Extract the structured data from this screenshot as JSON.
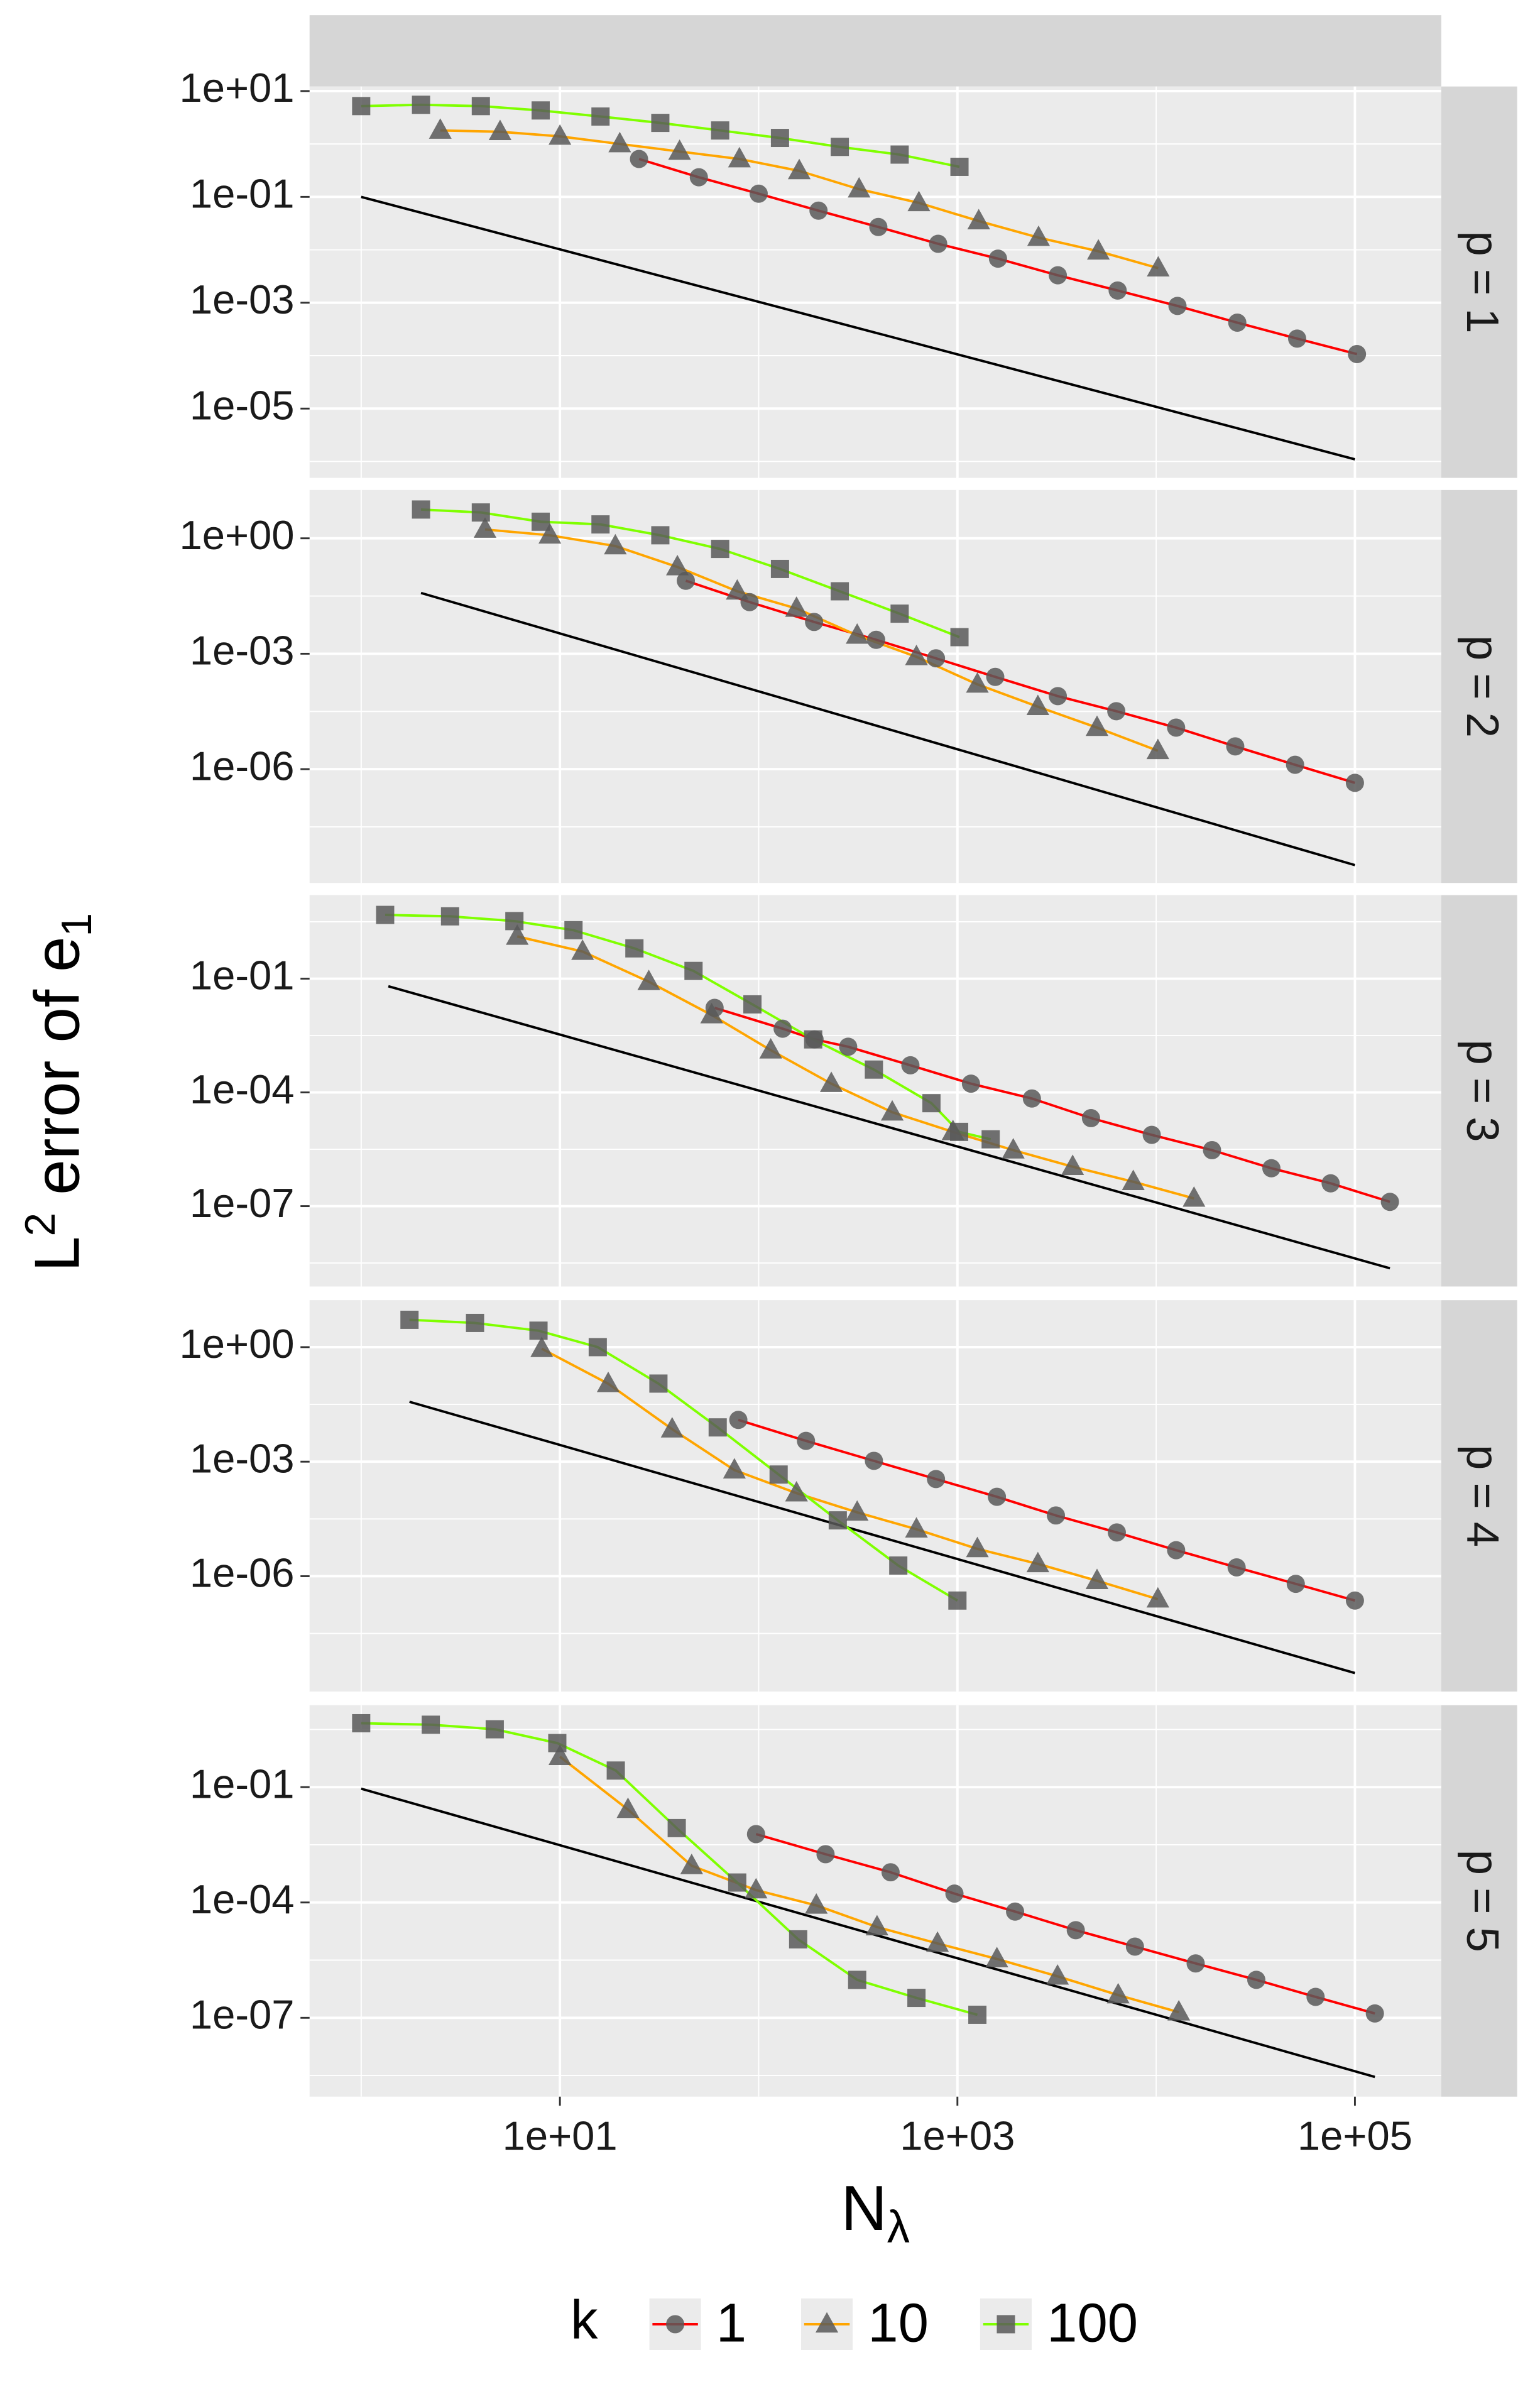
{
  "chart_data": {
    "type": "line",
    "x_label": [
      "N",
      "λ"
    ],
    "y_label": [
      "L",
      "2",
      " error of e",
      "1"
    ],
    "xscale": "log",
    "yscale": "log",
    "grid": true,
    "xlim": [
      0.55,
      272000
    ],
    "xticks": [
      {
        "value": 10,
        "label": "1e+01"
      },
      {
        "value": 1000,
        "label": "1e+03"
      },
      {
        "value": 100000,
        "label": "1e+05"
      }
    ],
    "legend_title": "k",
    "legend_position": "bottom",
    "marker_color": "#595959",
    "reference_color": "#000000",
    "series": [
      {
        "name": "1",
        "color": "#ff0000",
        "marker": "circle"
      },
      {
        "name": "10",
        "color": "#ffa500",
        "marker": "triangle"
      },
      {
        "name": "100",
        "color": "#7fff00",
        "marker": "square"
      }
    ],
    "panels": [
      {
        "label": "p = 1",
        "ylim": [
          4.9e-07,
          12.2
        ],
        "yticks": [
          {
            "value": 10,
            "label": "1e+01"
          },
          {
            "value": 0.1,
            "label": "1e-01"
          },
          {
            "value": 0.001,
            "label": "1e-03"
          },
          {
            "value": 1e-05,
            "label": "1e-05"
          }
        ],
        "data": [
          {
            "x": [
              25,
              50,
              100,
              200,
              400,
              800,
              1600,
              3200,
              6400,
              12800,
              25600,
              51200,
              102400
            ],
            "values": [
              0.52,
              0.235,
              0.115,
              0.055,
              0.027,
              0.013,
              0.0068,
              0.0033,
              0.0017,
              0.00087,
              0.00042,
              0.00021,
              0.000107
            ]
          },
          {
            "x": [
              2.5,
              5,
              10,
              20,
              40,
              80,
              160,
              320,
              640,
              1280,
              2560,
              5120,
              10240
            ],
            "values": [
              1.8,
              1.7,
              1.39,
              1.0,
              0.72,
              0.52,
              0.31,
              0.14,
              0.077,
              0.035,
              0.017,
              0.0094,
              0.0045
            ]
          },
          {
            "x": [
              1,
              2,
              4,
              8,
              16,
              32,
              64,
              128,
              256,
              512,
              1024
            ],
            "values": [
              5.2,
              5.5,
              5.2,
              4.3,
              3.3,
              2.5,
              1.8,
              1.3,
              0.88,
              0.63,
              0.37
            ]
          }
        ],
        "reference": {
          "x": [
            1,
            100000
          ],
          "values": [
            0.1,
            1.1e-06
          ]
        }
      },
      {
        "label": "p = 2",
        "ylim": [
          1.1e-09,
          18
        ],
        "yticks": [
          {
            "value": 1,
            "label": "1e+00"
          },
          {
            "value": 0.001,
            "label": "1e-03"
          },
          {
            "value": 1e-06,
            "label": "1e-06"
          }
        ],
        "data": [
          {
            "x": [
              43,
              90,
              190,
              390,
              780,
              1550,
              3200,
              6300,
              12600,
              25000,
              50000,
              100000
            ],
            "values": [
              0.079,
              0.022,
              0.0067,
              0.0023,
              0.00076,
              0.00025,
              7.9e-05,
              3.2e-05,
              1.2e-05,
              3.9e-06,
              1.3e-06,
              4.4e-07
            ]
          },
          {
            "x": [
              4.2,
              8.9,
              19,
              39,
              78,
              155,
              313,
              622,
              1260,
              2540,
              5040,
              10200
            ],
            "values": [
              1.7,
              1.2,
              0.63,
              0.18,
              0.042,
              0.015,
              0.003,
              0.00083,
              0.00016,
              4.2e-05,
              1.2e-05,
              3e-06
            ]
          },
          {
            "x": [
              2,
              4,
              8,
              16,
              32,
              64,
              128,
              256,
              512,
              1024
            ],
            "values": [
              5.6,
              4.7,
              2.7,
              2.3,
              1.2,
              0.53,
              0.16,
              0.042,
              0.011,
              0.0027
            ]
          }
        ],
        "reference": {
          "x": [
            2,
            100000
          ],
          "values": [
            0.038,
            3.2e-09
          ]
        }
      },
      {
        "label": "p = 3",
        "ylim": [
          7.6e-10,
          16
        ],
        "yticks": [
          {
            "value": 0.1,
            "label": "1e-01"
          },
          {
            "value": 0.0001,
            "label": "1e-04"
          },
          {
            "value": 1e-07,
            "label": "1e-07"
          }
        ],
        "data": [
          {
            "x": [
              60,
              132,
              191,
              282,
              580,
              1170,
              2370,
              4700,
              9500,
              19100,
              38000,
              75500,
              150000
            ],
            "values": [
              0.017,
              0.0048,
              0.0025,
              0.0016,
              0.00052,
              0.00017,
              6.9e-05,
              2.1e-05,
              7.6e-06,
              3e-06,
              1e-06,
              4e-07,
              1.3e-07
            ]
          },
          {
            "x": [
              6.1,
              13,
              28,
              58,
              115,
              232,
              470,
              950,
              1910,
              3800,
              7670,
              15500
            ],
            "values": [
              1.3,
              0.52,
              0.083,
              0.011,
              0.0013,
              0.00017,
              3e-05,
              9.1e-06,
              3e-06,
              1.1e-06,
              4.4e-07,
              1.6e-07
            ]
          },
          {
            "x": [
              1.32,
              2.8,
              5.9,
              11.7,
              23.7,
              47,
              93,
              188,
              380,
              740,
              1020,
              1470
            ],
            "values": [
              4.8,
              4.4,
              3.3,
              1.9,
              0.63,
              0.16,
              0.021,
              0.0025,
              0.0004,
              5.2e-05,
              9.1e-06,
              5.8e-06
            ]
          }
        ],
        "reference": {
          "x": [
            1.37,
            150000
          ],
          "values": [
            0.063,
            2.3e-09
          ]
        }
      },
      {
        "label": "p = 4",
        "ylim": [
          9.5e-10,
          17
        ],
        "yticks": [
          {
            "value": 1,
            "label": "1e+00"
          },
          {
            "value": 0.001,
            "label": "1e-03"
          },
          {
            "value": 1e-06,
            "label": "1e-06"
          }
        ],
        "data": [
          {
            "x": [
              79,
              173,
              380,
              780,
              1580,
              3130,
              6340,
              12600,
              25400,
              50400,
              100000
            ],
            "values": [
              0.0124,
              0.0035,
              0.00105,
              0.00035,
              0.00012,
              3.9e-05,
              1.4e-05,
              4.8e-06,
              1.7e-06,
              6.3e-07,
              2.3e-07
            ]
          },
          {
            "x": [
              8.1,
              17.5,
              36.7,
              75.5,
              155,
              313,
              622,
              1260,
              2540,
              5040,
              10200
            ],
            "values": [
              0.91,
              0.11,
              0.0071,
              0.0006,
              0.00015,
              4.7e-05,
              1.7e-05,
              5.2e-06,
              2.1e-06,
              7.6e-07,
              2.5e-07
            ]
          },
          {
            "x": [
              1.75,
              3.74,
              7.8,
              15.5,
              31.3,
              62.2,
              126,
              250,
              504,
              1000
            ],
            "values": [
              5.2,
              4.3,
              2.7,
              1.0,
              0.111,
              0.0079,
              0.00046,
              2.9e-05,
              1.9e-06,
              2.3e-07
            ]
          }
        ],
        "reference": {
          "x": [
            1.75,
            100000
          ],
          "values": [
            0.037,
            2.9e-09
          ]
        }
      },
      {
        "label": "p = 5",
        "ylim": [
          8.9e-10,
          13.5
        ],
        "yticks": [
          {
            "value": 0.1,
            "label": "1e-01"
          },
          {
            "value": 0.0001,
            "label": "1e-04"
          },
          {
            "value": 1e-07,
            "label": "1e-07"
          }
        ],
        "data": [
          {
            "x": [
              97,
              217,
              461,
              966,
              1950,
              3940,
              7820,
              15800,
              31900,
              63400,
              126000
            ],
            "values": [
              0.006,
              0.0018,
              0.00061,
              0.00017,
              5.8e-05,
              1.9e-05,
              7.1e-06,
              2.6e-06,
              9.7e-07,
              3.5e-07,
              1.3e-07
            ]
          },
          {
            "x": [
              10,
              22,
              46,
              97,
              195,
              394,
              794,
              1580,
              3190,
              6440,
              13000
            ],
            "values": [
              0.62,
              0.026,
              0.0009,
              0.00021,
              8.4e-05,
              2.3e-05,
              8.6e-06,
              3.4e-06,
              1.2e-06,
              3.9e-07,
              1.4e-07
            ]
          },
          {
            "x": [
              1,
              2.24,
              4.7,
              9.7,
              19.1,
              38.7,
              78,
              158,
              313,
              622,
              1260
            ],
            "values": [
              4.6,
              4.2,
              3.2,
              1.4,
              0.27,
              0.0086,
              0.00033,
              1.1e-05,
              9.7e-07,
              3.3e-07,
              1.2e-07
            ]
          }
        ],
        "reference": {
          "x": [
            1,
            126000
          ],
          "values": [
            0.091,
            2.9e-09
          ]
        }
      }
    ]
  }
}
